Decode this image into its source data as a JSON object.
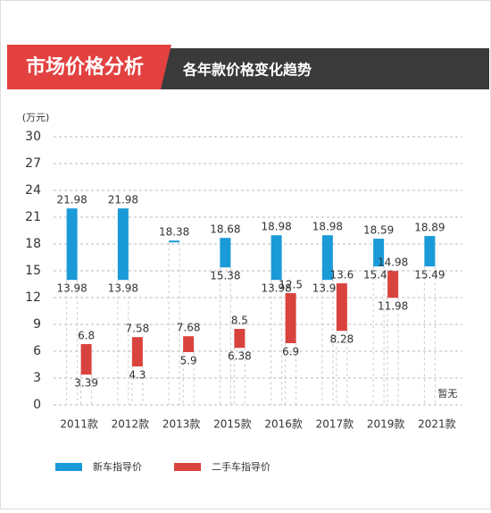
{
  "header": {
    "title": "市场价格分析",
    "subtitle": "各年款价格变化趋势"
  },
  "chart_data": {
    "type": "range-bar",
    "y_label": "(万元)",
    "categories": [
      "2011款",
      "2012款",
      "2013款",
      "2015款",
      "2016款",
      "2017款",
      "2019款",
      "2021款"
    ],
    "series": [
      {
        "name": "新车指导价",
        "color": "#1b9ad8",
        "low": [
          13.98,
          13.98,
          null,
          15.38,
          13.98,
          13.98,
          15.49,
          15.49
        ],
        "high": [
          21.98,
          21.98,
          18.38,
          18.68,
          18.98,
          18.98,
          18.59,
          18.89
        ]
      },
      {
        "name": "二手车指导价",
        "color": "#d9433e",
        "low": [
          3.39,
          4.3,
          5.9,
          6.38,
          6.9,
          8.28,
          11.98,
          null
        ],
        "high": [
          6.8,
          7.58,
          7.68,
          8.5,
          12.5,
          13.6,
          14.98,
          null
        ]
      }
    ],
    "annotation": "暂无",
    "ylim": [
      0,
      30
    ],
    "yticks": [
      0,
      3,
      6,
      9,
      12,
      15,
      18,
      21,
      24,
      27,
      30
    ],
    "grid": true
  }
}
